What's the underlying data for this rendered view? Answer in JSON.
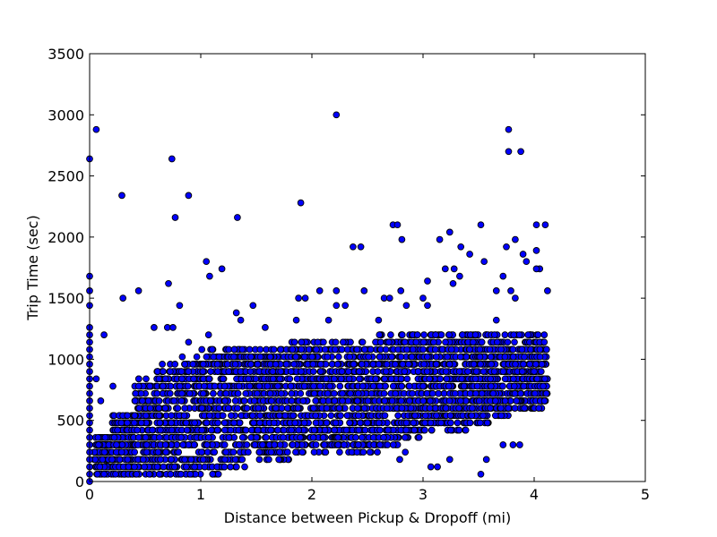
{
  "chart_data": {
    "type": "scatter",
    "title": "",
    "xlabel": "Distance between Pickup & Dropoff (mi)",
    "ylabel": "Trip Time (sec)",
    "xlim": [
      0,
      5
    ],
    "ylim": [
      0,
      3500
    ],
    "xticks": [
      "0",
      "1",
      "2",
      "3",
      "4",
      "5"
    ],
    "yticks": [
      "0",
      "500",
      "1000",
      "1500",
      "2000",
      "2500",
      "3000",
      "3500"
    ],
    "grid": false,
    "legend": "none",
    "marker_color": "#0000ff",
    "points": [
      [
        0.0,
        2640
      ],
      [
        0.06,
        2880
      ],
      [
        0.13,
        1200
      ],
      [
        0.0,
        1680
      ],
      [
        0.0,
        1560
      ],
      [
        0.0,
        1440
      ],
      [
        0.0,
        1260
      ],
      [
        0.0,
        1200
      ],
      [
        0.0,
        1140
      ],
      [
        0.0,
        1080
      ],
      [
        0.0,
        1020
      ],
      [
        0.0,
        960
      ],
      [
        0.0,
        900
      ],
      [
        0.0,
        840
      ],
      [
        0.0,
        780
      ],
      [
        0.0,
        720
      ],
      [
        0.0,
        660
      ],
      [
        0.0,
        600
      ],
      [
        0.0,
        540
      ],
      [
        0.0,
        480
      ],
      [
        0.0,
        420
      ],
      [
        0.0,
        360
      ],
      [
        0.0,
        300
      ],
      [
        0.0,
        240
      ],
      [
        0.0,
        180
      ],
      [
        0.0,
        120
      ],
      [
        0.0,
        60
      ],
      [
        0.0,
        0
      ],
      [
        0.29,
        2340
      ],
      [
        0.3,
        1500
      ],
      [
        0.44,
        1560
      ],
      [
        0.71,
        1620
      ],
      [
        0.74,
        2640
      ],
      [
        0.77,
        2160
      ],
      [
        0.81,
        1440
      ],
      [
        0.89,
        2340
      ],
      [
        1.05,
        1800
      ],
      [
        1.08,
        1680
      ],
      [
        1.19,
        1740
      ],
      [
        1.33,
        2160
      ],
      [
        1.9,
        2280
      ],
      [
        2.22,
        3000
      ],
      [
        2.37,
        1920
      ],
      [
        2.44,
        1920
      ],
      [
        2.73,
        2100
      ],
      [
        2.77,
        2100
      ],
      [
        2.81,
        1980
      ],
      [
        3.15,
        1980
      ],
      [
        3.24,
        2040
      ],
      [
        3.34,
        1920
      ],
      [
        3.42,
        1860
      ],
      [
        3.52,
        2100
      ],
      [
        3.55,
        1800
      ],
      [
        3.75,
        1920
      ],
      [
        3.77,
        2880
      ],
      [
        3.77,
        2700
      ],
      [
        3.83,
        1980
      ],
      [
        3.88,
        2700
      ],
      [
        3.9,
        1860
      ],
      [
        3.93,
        1800
      ],
      [
        4.02,
        2100
      ],
      [
        4.1,
        2100
      ],
      [
        4.05,
        1740
      ],
      [
        4.02,
        1740
      ],
      [
        4.02,
        1890
      ],
      [
        3.52,
        60
      ],
      [
        3.57,
        180
      ],
      [
        3.07,
        120
      ],
      [
        3.13,
        120
      ],
      [
        3.24,
        180
      ],
      [
        3.72,
        300
      ],
      [
        3.81,
        300
      ],
      [
        3.87,
        300
      ],
      [
        2.79,
        180
      ],
      [
        2.84,
        240
      ],
      [
        3.04,
        1640
      ],
      [
        3.04,
        1440
      ],
      [
        3.0,
        1500
      ],
      [
        2.8,
        1560
      ],
      [
        2.85,
        1440
      ],
      [
        1.86,
        1320
      ],
      [
        1.88,
        1500
      ],
      [
        1.94,
        1500
      ],
      [
        2.07,
        1560
      ],
      [
        1.32,
        1380
      ],
      [
        1.36,
        1320
      ],
      [
        1.47,
        1440
      ],
      [
        1.58,
        1260
      ],
      [
        0.58,
        1260
      ],
      [
        0.7,
        1260
      ],
      [
        0.75,
        1260
      ],
      [
        0.89,
        1140
      ],
      [
        1.07,
        1200
      ],
      [
        0.06,
        840
      ],
      [
        0.1,
        660
      ],
      [
        0.21,
        780
      ],
      [
        3.66,
        1560
      ],
      [
        3.72,
        1680
      ],
      [
        3.79,
        1560
      ],
      [
        4.12,
        1560
      ],
      [
        3.2,
        1740
      ],
      [
        3.28,
        1740
      ],
      [
        3.33,
        1680
      ],
      [
        3.27,
        1620
      ],
      [
        3.66,
        1320
      ],
      [
        2.95,
        1200
      ],
      [
        2.6,
        1320
      ],
      [
        2.47,
        1560
      ],
      [
        2.65,
        1500
      ],
      [
        2.7,
        1500
      ],
      [
        2.22,
        1560
      ],
      [
        2.3,
        1440
      ],
      [
        2.22,
        1440
      ],
      [
        2.15,
        1320
      ],
      [
        3.83,
        1500
      ]
    ],
    "band_ranges": [
      [
        0.04,
        0.2,
        60,
        360
      ],
      [
        0.2,
        0.4,
        60,
        540
      ],
      [
        0.4,
        0.6,
        60,
        840
      ],
      [
        0.6,
        0.8,
        60,
        960
      ],
      [
        0.8,
        1.0,
        60,
        1020
      ],
      [
        1.0,
        1.2,
        60,
        1080
      ],
      [
        1.2,
        1.4,
        120,
        1080
      ],
      [
        1.4,
        1.6,
        180,
        1080
      ],
      [
        1.6,
        1.8,
        180,
        1080
      ],
      [
        1.8,
        2.0,
        240,
        1140
      ],
      [
        2.0,
        2.2,
        240,
        1140
      ],
      [
        2.2,
        2.4,
        240,
        1140
      ],
      [
        2.4,
        2.6,
        240,
        1140
      ],
      [
        2.6,
        2.8,
        300,
        1200
      ],
      [
        2.8,
        3.0,
        360,
        1200
      ],
      [
        3.0,
        3.2,
        420,
        1200
      ],
      [
        3.2,
        3.4,
        420,
        1200
      ],
      [
        3.4,
        3.6,
        480,
        1200
      ],
      [
        3.6,
        3.8,
        540,
        1200
      ],
      [
        3.8,
        4.0,
        600,
        1200
      ],
      [
        4.0,
        4.12,
        600,
        1200
      ]
    ]
  }
}
